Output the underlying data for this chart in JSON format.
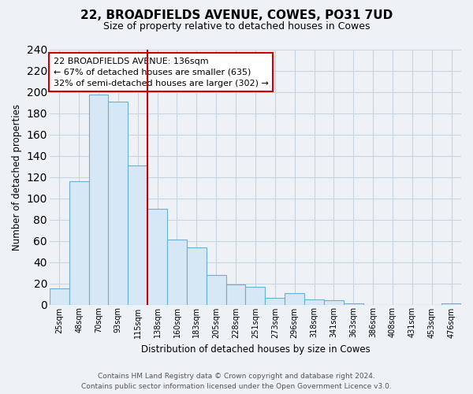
{
  "title1": "22, BROADFIELDS AVENUE, COWES, PO31 7UD",
  "title2": "Size of property relative to detached houses in Cowes",
  "xlabel": "Distribution of detached houses by size in Cowes",
  "ylabel": "Number of detached properties",
  "categories": [
    "25sqm",
    "48sqm",
    "70sqm",
    "93sqm",
    "115sqm",
    "138sqm",
    "160sqm",
    "183sqm",
    "205sqm",
    "228sqm",
    "251sqm",
    "273sqm",
    "296sqm",
    "318sqm",
    "341sqm",
    "363sqm",
    "386sqm",
    "408sqm",
    "431sqm",
    "453sqm",
    "476sqm"
  ],
  "values": [
    15,
    116,
    198,
    191,
    131,
    90,
    61,
    54,
    28,
    19,
    17,
    6,
    11,
    5,
    4,
    1,
    0,
    0,
    0,
    0,
    1
  ],
  "bar_color": "#d6e8f5",
  "bar_edge_color": "#6aafd6",
  "vline_x_index": 5,
  "vline_color": "#cc0000",
  "annotation_lines": [
    "22 BROADFIELDS AVENUE: 136sqm",
    "← 67% of detached houses are smaller (635)",
    "32% of semi-detached houses are larger (302) →"
  ],
  "annotation_box_color": "#ffffff",
  "annotation_box_edge_color": "#cc0000",
  "ylim": [
    0,
    240
  ],
  "yticks": [
    0,
    20,
    40,
    60,
    80,
    100,
    120,
    140,
    160,
    180,
    200,
    220,
    240
  ],
  "footer1": "Contains HM Land Registry data © Crown copyright and database right 2024.",
  "footer2": "Contains public sector information licensed under the Open Government Licence v3.0.",
  "bg_color": "#eef2f7",
  "grid_color": "#c8d4e0",
  "title_fontsize": 11,
  "subtitle_fontsize": 9
}
